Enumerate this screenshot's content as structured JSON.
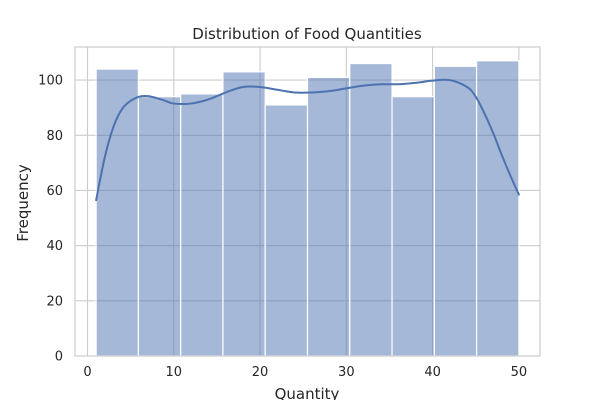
{
  "chart_data": {
    "type": "bar",
    "title": "Distribution of Food Quantities",
    "xlabel": "Quantity",
    "ylabel": "Frequency",
    "xlim": [
      -1.45,
      52.45
    ],
    "ylim": [
      0,
      112
    ],
    "x_ticks": [
      0,
      10,
      20,
      30,
      40,
      50
    ],
    "y_ticks": [
      0,
      20,
      40,
      60,
      80,
      100
    ],
    "grid": true,
    "bins": [
      {
        "start": 1.0,
        "end": 5.9,
        "count": 104
      },
      {
        "start": 5.9,
        "end": 10.8,
        "count": 94
      },
      {
        "start": 10.8,
        "end": 15.7,
        "count": 95
      },
      {
        "start": 15.7,
        "end": 20.6,
        "count": 103
      },
      {
        "start": 20.6,
        "end": 25.5,
        "count": 91
      },
      {
        "start": 25.5,
        "end": 30.4,
        "count": 101
      },
      {
        "start": 30.4,
        "end": 35.3,
        "count": 106
      },
      {
        "start": 35.3,
        "end": 40.2,
        "count": 94
      },
      {
        "start": 40.2,
        "end": 45.1,
        "count": 105
      },
      {
        "start": 45.1,
        "end": 50.0,
        "count": 107
      }
    ],
    "kde": {
      "x": [
        1,
        2,
        3,
        4,
        5,
        6,
        7,
        8,
        9,
        10,
        12,
        14,
        16,
        18,
        20,
        22,
        24,
        26,
        28,
        30,
        32,
        34,
        36,
        38,
        40,
        42,
        44,
        45,
        46,
        47,
        48,
        49,
        50
      ],
      "y": [
        56.5,
        72,
        83,
        89.5,
        92.5,
        94,
        94.2,
        93.5,
        92.5,
        91.5,
        91.5,
        93,
        95.5,
        97.5,
        97.5,
        96.5,
        95.5,
        95.5,
        96,
        97,
        98,
        98.5,
        98.5,
        99,
        99.8,
        100,
        97.5,
        94,
        88,
        81,
        73,
        65.5,
        58.5
      ]
    },
    "bar_color": "#4c72b0",
    "bar_opacity": 0.5,
    "line_color": "#4c72b0"
  }
}
